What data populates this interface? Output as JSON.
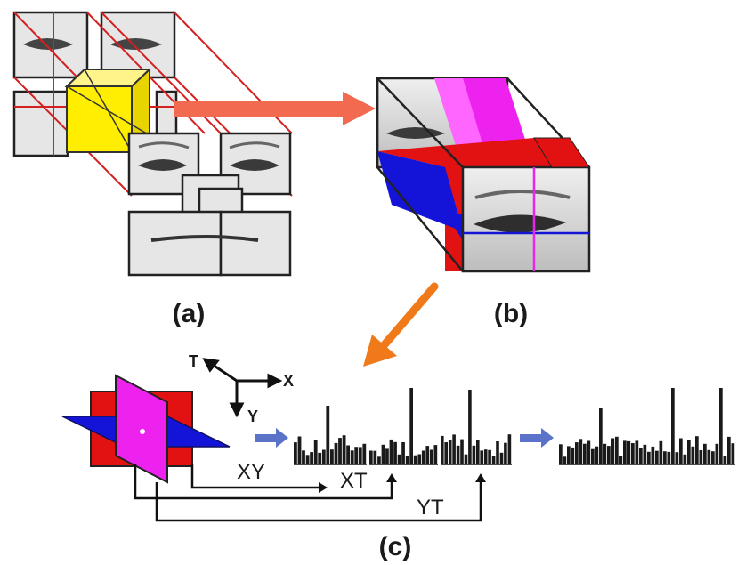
{
  "labels": {
    "a": "(a)",
    "b": "(b)",
    "c": "(c)"
  },
  "axes": {
    "t": "T",
    "x": "X",
    "y": "Y"
  },
  "planes": {
    "xy": "XY",
    "xt": "XT",
    "yt": "YT"
  },
  "colors": {
    "block_highlight": "#ffee00",
    "grid_lines": "#d42020",
    "arrow_main": "#f26a4f",
    "arrow_down": "#f07a1a",
    "plane_xy": "#1414d8",
    "plane_xt": "#e21212",
    "plane_yt": "#ee22ee",
    "flow_arrow": "#5a72c8",
    "histogram": "#1a1a1a"
  },
  "icons": [
    "face-patch-image",
    "feature-arrow-icon"
  ]
}
